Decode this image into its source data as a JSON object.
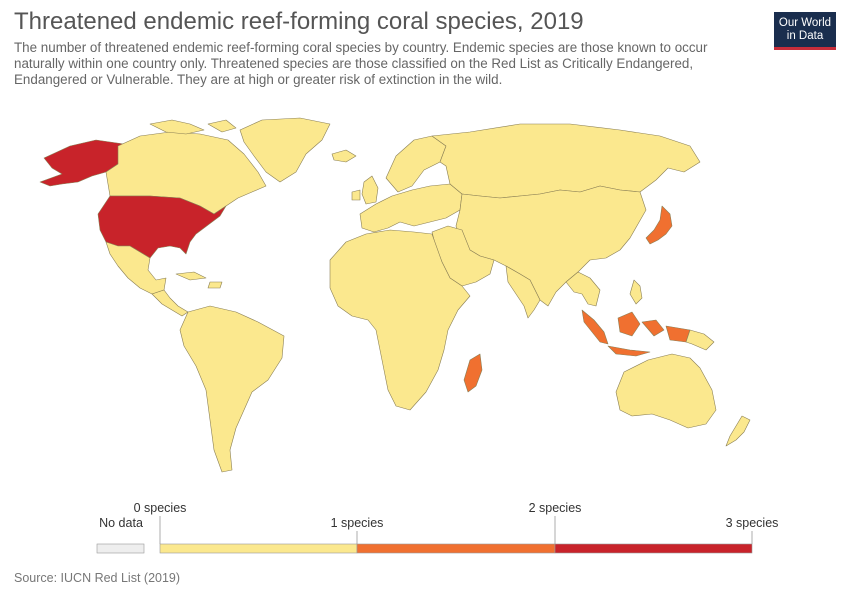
{
  "header": {
    "title": "Threatened endemic reef-forming coral species, 2019",
    "subtitle": "The number of threatened endemic reef-forming coral species by country. Endemic species are those known to occur naturally within one country only. Threatened species are those classified on the Red List as Critically Endangered, Endangered or Vulnerable. They are at high or greater risk of extinction in the wild.",
    "logo_line1": "Our World",
    "logo_line2": "in Data"
  },
  "colors": {
    "zero": "#fbe88e",
    "one": "#f0883c",
    "two": "#f07030",
    "three": "#c8232a",
    "no_data": "#eeeeee",
    "border": "#8a7f55"
  },
  "map": {
    "countries_highlighted": [
      {
        "name": "United States",
        "value": 3
      },
      {
        "name": "Japan",
        "value": 2
      },
      {
        "name": "Indonesia",
        "value": 2
      },
      {
        "name": "Madagascar",
        "value": 2
      }
    ]
  },
  "legend": {
    "no_data_label": "No data",
    "tick_0": "0 species",
    "tick_1": "1 species",
    "tick_2": "2 species",
    "tick_3": "3 species"
  },
  "footer": {
    "source": "Source: IUCN Red List (2019)"
  }
}
